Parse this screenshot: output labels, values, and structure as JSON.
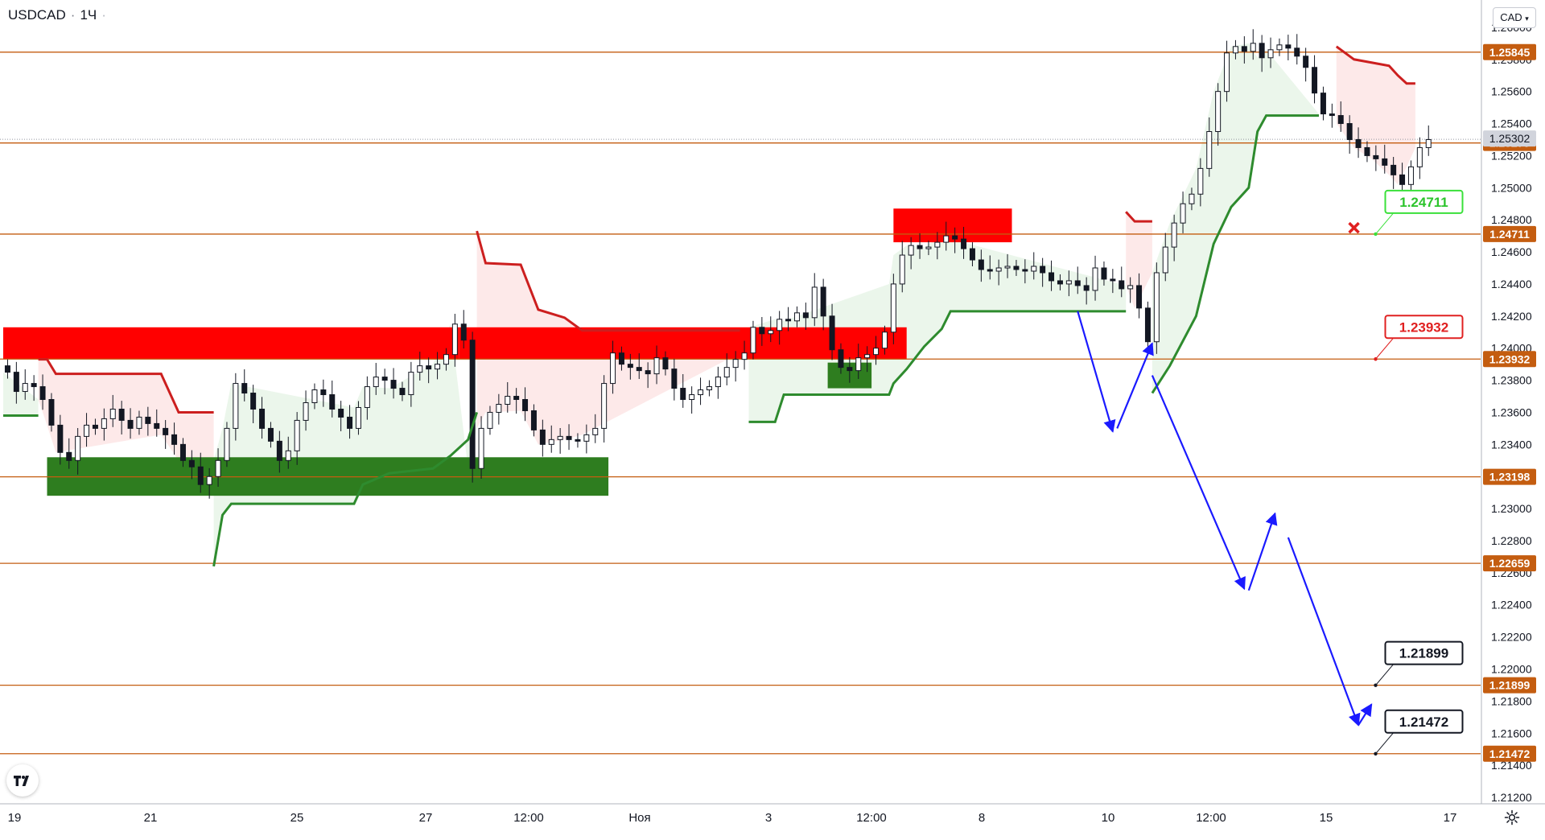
{
  "header": {
    "symbol": "USDCAD",
    "separator": "·",
    "interval": "1Ч",
    "dot": "·"
  },
  "currency_button": {
    "label": "CAD",
    "icon": "chevron-down-icon"
  },
  "bottom_icons": {
    "logo": "tradingview-logo",
    "settings": "gear-icon"
  },
  "colors": {
    "level_line": "#c45d10",
    "level_badge": "#c45d10",
    "last_price_badge": "#d1d4dc",
    "resistance_zone": "#ff0000",
    "support_zone": "#2e7d1f",
    "supertrend_up": "#2e8b2e",
    "supertrend_down": "#cc1f1f",
    "fill_up": "#e6f4e6",
    "fill_down": "#fde4e4",
    "projection": "#1a1aff",
    "candle": "#131722"
  },
  "chart_data": {
    "type": "candlestick",
    "symbol": "USDCAD",
    "interval": "1Ч",
    "grid": false,
    "ylim": [
      1.2116,
      1.2617
    ],
    "price_axis_ticks": [
      "1.26000",
      "1.25800",
      "1.25600",
      "1.25400",
      "1.25200",
      "1.25000",
      "1.24800",
      "1.24600",
      "1.24400",
      "1.24200",
      "1.24000",
      "1.23800",
      "1.23600",
      "1.23400",
      "1.23200",
      "1.23000",
      "1.22800",
      "1.22600",
      "1.22400",
      "1.22200",
      "1.22000",
      "1.21800",
      "1.21600",
      "1.21400",
      "1.21200"
    ],
    "time_axis_ticks": [
      "19",
      "21",
      "25",
      "27",
      "12:00",
      "Ноя",
      "3",
      "12:00",
      "8",
      "10",
      "12:00",
      "15",
      "17"
    ],
    "horizontal_levels": [
      {
        "value": 1.25845,
        "label": "1.25845"
      },
      {
        "value": 1.25279,
        "label": "1.25279"
      },
      {
        "value": 1.24711,
        "label": "1.24711"
      },
      {
        "value": 1.23932,
        "label": "1.23932"
      },
      {
        "value": 1.23198,
        "label": "1.23198"
      },
      {
        "value": 1.22659,
        "label": "1.22659"
      },
      {
        "value": 1.21899,
        "label": "1.21899"
      },
      {
        "value": 1.21472,
        "label": "1.21472"
      }
    ],
    "last_price": {
      "value": 1.25302,
      "label": "1.25302"
    },
    "resistance_zones": [
      {
        "x0": 0,
        "x1": 52,
        "y0": 1.2413,
        "y1": 1.2393
      },
      {
        "x0": 52,
        "x1": 103,
        "y0": 1.2413,
        "y1": 1.2393
      },
      {
        "x0": 101.5,
        "x1": 115,
        "y0": 1.2487,
        "y1": 1.2466
      }
    ],
    "support_zones": [
      {
        "x0": 5,
        "x1": 69,
        "y0": 1.2332,
        "y1": 1.2308
      },
      {
        "x0": 94,
        "x1": 99,
        "y0": 1.2391,
        "y1": 1.2375
      }
    ],
    "supertrend": [
      {
        "dir": "up",
        "pts": [
          [
            0,
            1.2358
          ],
          [
            4,
            1.2358
          ]
        ]
      },
      {
        "dir": "down",
        "pts": [
          [
            4,
            1.2393
          ],
          [
            5,
            1.2393
          ],
          [
            6,
            1.2384
          ],
          [
            18,
            1.2384
          ],
          [
            20,
            1.236
          ],
          [
            24,
            1.236
          ]
        ]
      },
      {
        "dir": "up",
        "pts": [
          [
            24,
            1.2264
          ],
          [
            25,
            1.2296
          ],
          [
            26,
            1.2303
          ],
          [
            40,
            1.2303
          ],
          [
            41,
            1.2315
          ],
          [
            44,
            1.2322
          ],
          [
            49,
            1.2325
          ],
          [
            51,
            1.2333
          ],
          [
            53,
            1.2343
          ],
          [
            54,
            1.236
          ]
        ]
      },
      {
        "dir": "down",
        "pts": [
          [
            54,
            1.2473
          ],
          [
            55,
            1.2453
          ],
          [
            59,
            1.2452
          ],
          [
            61,
            1.2424
          ],
          [
            64,
            1.2419
          ],
          [
            66,
            1.2411
          ],
          [
            84,
            1.2411
          ]
        ]
      },
      {
        "dir": "up",
        "pts": [
          [
            85,
            1.2354
          ],
          [
            88,
            1.2354
          ],
          [
            89,
            1.2371
          ],
          [
            101,
            1.2371
          ],
          [
            101.5,
            1.2378
          ],
          [
            103,
            1.2387
          ],
          [
            105,
            1.2401
          ],
          [
            107,
            1.2412
          ],
          [
            108,
            1.2423
          ],
          [
            128,
            1.2423
          ]
        ]
      },
      {
        "dir": "down",
        "pts": [
          [
            128,
            1.2485
          ],
          [
            129,
            1.2479
          ],
          [
            131,
            1.2479
          ]
        ]
      },
      {
        "dir": "up",
        "pts": [
          [
            131,
            1.2372
          ],
          [
            133,
            1.2389
          ],
          [
            136,
            1.242
          ],
          [
            138,
            1.2465
          ],
          [
            140,
            1.2488
          ],
          [
            142,
            1.25
          ],
          [
            143,
            1.2535
          ],
          [
            144,
            1.2545
          ],
          [
            150,
            1.2545
          ]
        ]
      },
      {
        "dir": "down",
        "pts": [
          [
            152,
            1.2588
          ],
          [
            154,
            1.258
          ],
          [
            156,
            1.2578
          ],
          [
            158,
            1.2576
          ],
          [
            159,
            1.257
          ],
          [
            160,
            1.2565
          ],
          [
            161,
            1.2565
          ]
        ]
      }
    ],
    "arrows": [
      {
        "from": [
          122.5,
          1.2423
        ],
        "to": [
          126.5,
          1.2348
        ]
      },
      {
        "from": [
          127,
          1.235
        ],
        "to": [
          131,
          1.2403
        ]
      },
      {
        "from": [
          131,
          1.2383
        ],
        "to": [
          141.5,
          1.225
        ]
      },
      {
        "from": [
          142,
          1.2249
        ],
        "to": [
          145,
          1.2297
        ]
      },
      {
        "from": [
          146.5,
          1.2282
        ],
        "to": [
          154.5,
          1.2165
        ]
      },
      {
        "from": [
          154.5,
          1.2165
        ],
        "to": [
          156,
          1.2178
        ]
      }
    ],
    "labels": [
      {
        "text": "1.24711",
        "at": [
          155,
          1.24711
        ],
        "style": "green"
      },
      {
        "text": "1.23932",
        "at": [
          155,
          1.23932
        ],
        "style": "red"
      },
      {
        "text": "1.21899",
        "at": [
          155,
          1.21899
        ],
        "style": "black"
      },
      {
        "text": "1.21472",
        "at": [
          155,
          1.21472
        ],
        "style": "black"
      }
    ],
    "cancel_mark": {
      "at": [
        154,
        1.2475
      ],
      "icon": "x-icon"
    },
    "candles_close": [
      1.2385,
      1.2373,
      1.2378,
      1.2376,
      1.2368,
      1.2352,
      1.2335,
      1.233,
      1.2345,
      1.2352,
      1.235,
      1.2356,
      1.2362,
      1.2355,
      1.235,
      1.2357,
      1.2353,
      1.235,
      1.2346,
      1.234,
      1.233,
      1.2326,
      1.2315,
      1.232,
      1.233,
      1.235,
      1.2378,
      1.2372,
      1.2362,
      1.235,
      1.2342,
      1.233,
      1.2336,
      1.2355,
      1.2366,
      1.2374,
      1.2371,
      1.2362,
      1.2357,
      1.235,
      1.2363,
      1.2376,
      1.2382,
      1.238,
      1.2375,
      1.2371,
      1.2385,
      1.2389,
      1.2387,
      1.239,
      1.2396,
      1.2415,
      1.2405,
      1.2325,
      1.235,
      1.236,
      1.2365,
      1.237,
      1.2368,
      1.2361,
      1.2349,
      1.234,
      1.2343,
      1.2345,
      1.2343,
      1.2342,
      1.2346,
      1.235,
      1.2378,
      1.2397,
      1.239,
      1.2388,
      1.2386,
      1.2384,
      1.2394,
      1.2387,
      1.2375,
      1.2368,
      1.2371,
      1.2374,
      1.2376,
      1.2382,
      1.2388,
      1.2393,
      1.2397,
      1.2413,
      1.2409,
      1.2411,
      1.2418,
      1.2417,
      1.2422,
      1.2419,
      1.2438,
      1.242,
      1.2399,
      1.2388,
      1.2386,
      1.2394,
      1.2396,
      1.24,
      1.241,
      1.244,
      1.2458,
      1.2464,
      1.2462,
      1.2463,
      1.2466,
      1.247,
      1.2468,
      1.2462,
      1.2455,
      1.2449,
      1.2448,
      1.245,
      1.2451,
      1.2449,
      1.2448,
      1.2451,
      1.2447,
      1.2442,
      1.244,
      1.2442,
      1.2439,
      1.2436,
      1.245,
      1.2443,
      1.2442,
      1.2437,
      1.2439,
      1.2425,
      1.2404,
      1.2447,
      1.2463,
      1.2478,
      1.249,
      1.2496,
      1.2512,
      1.2535,
      1.256,
      1.2584,
      1.2588,
      1.2585,
      1.259,
      1.2581,
      1.2586,
      1.2589,
      1.2587,
      1.2582,
      1.2575,
      1.2559,
      1.2546,
      1.2545,
      1.254,
      1.253,
      1.2525,
      1.252,
      1.2518,
      1.2514,
      1.2508,
      1.2502,
      1.2513,
      1.2525,
      1.253
    ]
  }
}
